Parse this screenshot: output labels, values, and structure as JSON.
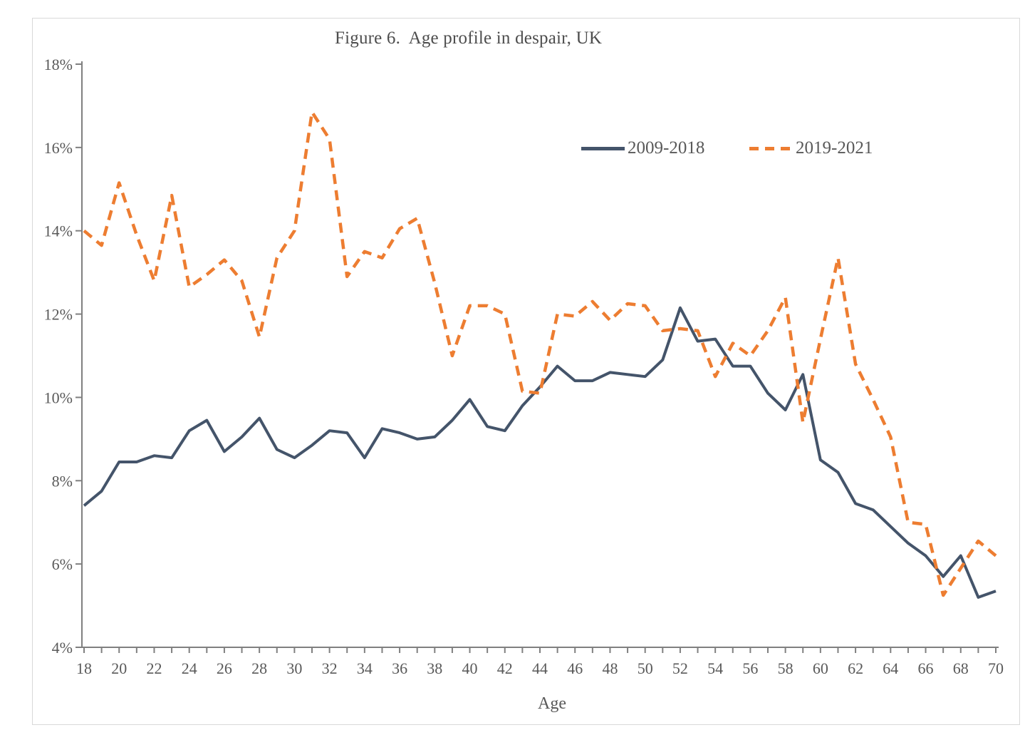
{
  "figure": {
    "title": "Figure 6.  Age profile in despair, UK",
    "x_axis_title": "Age"
  },
  "colors": {
    "series_2009_2018": "#44546A",
    "series_2019_2021": "#ED7D31",
    "axis": "#808080",
    "tick_label": "#595959",
    "frame_border": "#d9d9d9"
  },
  "chart_data": {
    "type": "line",
    "title": "Figure 6.  Age profile in despair, UK",
    "xlabel": "Age",
    "ylabel": "",
    "xlim": [
      18,
      70
    ],
    "ylim": [
      4,
      18
    ],
    "grid": false,
    "legend_position": "top-right-inside",
    "x_tick_labels": [
      "18",
      "20",
      "22",
      "24",
      "26",
      "28",
      "30",
      "32",
      "34",
      "36",
      "38",
      "40",
      "42",
      "44",
      "46",
      "48",
      "50",
      "52",
      "54",
      "56",
      "58",
      "60",
      "62",
      "64",
      "66",
      "68",
      "70"
    ],
    "y_tick_values": [
      4,
      6,
      8,
      10,
      12,
      14,
      16,
      18
    ],
    "y_tick_labels": [
      "4%",
      "6%",
      "8%",
      "10%",
      "12%",
      "14%",
      "16%",
      "18%"
    ],
    "x": [
      18,
      19,
      20,
      21,
      22,
      23,
      24,
      25,
      26,
      27,
      28,
      29,
      30,
      31,
      32,
      33,
      34,
      35,
      36,
      37,
      38,
      39,
      40,
      41,
      42,
      43,
      44,
      45,
      46,
      47,
      48,
      49,
      50,
      51,
      52,
      53,
      54,
      55,
      56,
      57,
      58,
      59,
      60,
      61,
      62,
      63,
      64,
      65,
      66,
      67,
      68,
      69,
      70
    ],
    "series": [
      {
        "name": "2009-2018",
        "style": "solid",
        "color": "#44546A",
        "values": [
          7.4,
          7.75,
          8.45,
          8.45,
          8.6,
          8.55,
          9.2,
          9.45,
          8.7,
          9.05,
          9.5,
          8.75,
          8.55,
          8.85,
          9.2,
          9.15,
          8.55,
          9.25,
          9.15,
          9.0,
          9.05,
          9.45,
          9.95,
          9.3,
          9.2,
          9.8,
          10.25,
          10.75,
          10.4,
          10.4,
          10.6,
          10.55,
          10.5,
          10.9,
          12.15,
          11.35,
          11.4,
          10.75,
          10.75,
          10.1,
          9.7,
          10.55,
          8.5,
          8.2,
          7.45,
          7.3,
          6.9,
          6.5,
          6.2,
          5.7,
          6.2,
          5.2,
          5.35
        ]
      },
      {
        "name": "2019-2021",
        "style": "dashed",
        "color": "#ED7D31",
        "values": [
          14.0,
          13.65,
          15.15,
          13.9,
          12.8,
          14.85,
          12.65,
          12.95,
          13.3,
          12.8,
          11.45,
          13.35,
          14.0,
          16.85,
          16.2,
          12.9,
          13.5,
          13.35,
          14.05,
          14.3,
          12.75,
          11.0,
          12.2,
          12.2,
          12.0,
          10.15,
          10.1,
          12.0,
          11.95,
          12.3,
          11.85,
          12.25,
          12.2,
          11.6,
          11.65,
          11.6,
          10.5,
          11.3,
          11.0,
          11.6,
          12.4,
          9.4,
          11.4,
          13.35,
          10.8,
          9.95,
          9.05,
          7.0,
          6.95,
          5.25,
          5.9,
          6.55,
          6.2
        ]
      }
    ]
  }
}
